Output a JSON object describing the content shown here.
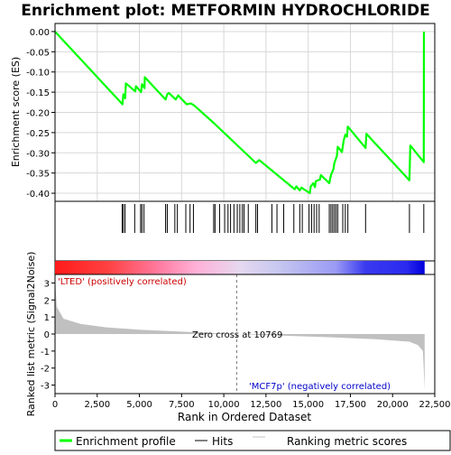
{
  "chart_data": {
    "type": "line",
    "title": "Enrichment plot: METFORMIN HYDROCHLORIDE",
    "es_panel": {
      "ylabel": "Enrichment score (ES)",
      "ylim": [
        -0.42,
        0.02
      ],
      "yticks": [
        0.0,
        -0.05,
        -0.1,
        -0.15,
        -0.2,
        -0.25,
        -0.3,
        -0.35,
        -0.4
      ],
      "ytick_labels": [
        "0.00",
        "-0.05",
        "-0.10",
        "-0.15",
        "-0.20",
        "-0.25",
        "-0.30",
        "-0.35",
        "-0.40"
      ],
      "grid": true,
      "line_color": "#00ff00",
      "points": [
        [
          0,
          0.0
        ],
        [
          4000,
          -0.18
        ],
        [
          4050,
          -0.155
        ],
        [
          4150,
          -0.165
        ],
        [
          4200,
          -0.128
        ],
        [
          4750,
          -0.148
        ],
        [
          4800,
          -0.135
        ],
        [
          5100,
          -0.15
        ],
        [
          5150,
          -0.13
        ],
        [
          5300,
          -0.14
        ],
        [
          5320,
          -0.113
        ],
        [
          6550,
          -0.168
        ],
        [
          6650,
          -0.155
        ],
        [
          6750,
          -0.152
        ],
        [
          7150,
          -0.168
        ],
        [
          7300,
          -0.158
        ],
        [
          7800,
          -0.18
        ],
        [
          8050,
          -0.178
        ],
        [
          8250,
          -0.183
        ],
        [
          9450,
          -0.228
        ],
        [
          11900,
          -0.325
        ],
        [
          12100,
          -0.318
        ],
        [
          14200,
          -0.39
        ],
        [
          14300,
          -0.383
        ],
        [
          14500,
          -0.393
        ],
        [
          14600,
          -0.386
        ],
        [
          15100,
          -0.4
        ],
        [
          15150,
          -0.383
        ],
        [
          15300,
          -0.375
        ],
        [
          15400,
          -0.385
        ],
        [
          15450,
          -0.37
        ],
        [
          15700,
          -0.366
        ],
        [
          15750,
          -0.355
        ],
        [
          16250,
          -0.375
        ],
        [
          16350,
          -0.355
        ],
        [
          16500,
          -0.34
        ],
        [
          16550,
          -0.325
        ],
        [
          16700,
          -0.308
        ],
        [
          16750,
          -0.285
        ],
        [
          17000,
          -0.298
        ],
        [
          17100,
          -0.27
        ],
        [
          17200,
          -0.255
        ],
        [
          17300,
          -0.26
        ],
        [
          17350,
          -0.235
        ],
        [
          18400,
          -0.288
        ],
        [
          18450,
          -0.253
        ],
        [
          21000,
          -0.368
        ],
        [
          21050,
          -0.282
        ],
        [
          21850,
          -0.323
        ],
        [
          21860,
          0.0
        ]
      ]
    },
    "hits": {
      "positions": [
        3980,
        4050,
        4150,
        4720,
        5070,
        5150,
        5270,
        6550,
        6650,
        7100,
        7250,
        7750,
        8000,
        8200,
        9400,
        9480,
        9750,
        10050,
        10250,
        10400,
        10600,
        10800,
        10950,
        11100,
        11200,
        11450,
        11900,
        12000,
        12850,
        13150,
        13550,
        14150,
        14500,
        14650,
        15050,
        15200,
        15350,
        15500,
        15650,
        16250,
        16350,
        16450,
        16550,
        16650,
        16750,
        17050,
        17200,
        17350,
        18400,
        21000,
        21850
      ],
      "line_color": "#000000"
    },
    "gradient_bar": {
      "stops": [
        {
          "offset": 0.0,
          "color": "#ff1a1a"
        },
        {
          "offset": 0.14,
          "color": "#ff4040"
        },
        {
          "offset": 0.28,
          "color": "#ff7aa0"
        },
        {
          "offset": 0.38,
          "color": "#ffb0d6"
        },
        {
          "offset": 0.5,
          "color": "#e6d8f0"
        },
        {
          "offset": 0.6,
          "color": "#c8c8f0"
        },
        {
          "offset": 0.76,
          "color": "#9a9af5"
        },
        {
          "offset": 0.84,
          "color": "#3a3af0"
        },
        {
          "offset": 0.95,
          "color": "#2a2af0"
        },
        {
          "offset": 1.0,
          "color": "#0000dd"
        }
      ]
    },
    "metric_panel": {
      "ylabel": "Ranked list metric (Signal2Noise)",
      "ylim": [
        -3.5,
        3.5
      ],
      "yticks": [
        3,
        2,
        1,
        0,
        -1,
        -2,
        -3
      ],
      "ytick_labels": [
        "3",
        "2",
        "1",
        "0",
        "-1",
        "-2",
        "-3"
      ],
      "fill_color": "#c0c0c0",
      "profile": [
        [
          0,
          3.3
        ],
        [
          100,
          1.6
        ],
        [
          500,
          0.9
        ],
        [
          1500,
          0.6
        ],
        [
          3000,
          0.4
        ],
        [
          5000,
          0.25
        ],
        [
          8000,
          0.12
        ],
        [
          10769,
          0.0
        ],
        [
          13000,
          -0.08
        ],
        [
          16000,
          -0.18
        ],
        [
          19000,
          -0.3
        ],
        [
          21000,
          -0.45
        ],
        [
          21500,
          -0.65
        ],
        [
          21800,
          -1.0
        ],
        [
          21900,
          -3.3
        ]
      ],
      "zero_cross_label": "Zero cross at 10769",
      "zero_cross": 10769,
      "pos_label": "'LTED' (positively correlated)",
      "neg_label": "'MCF7p' (negatively correlated)"
    },
    "x_axis": {
      "xlabel": "Rank in Ordered Dataset",
      "xlim": [
        0,
        22500
      ],
      "xticks": [
        0,
        2500,
        5000,
        7500,
        10000,
        12500,
        15000,
        17500,
        20000,
        22500
      ],
      "xtick_labels": [
        "0",
        "2,500",
        "5,000",
        "7,500",
        "10,000",
        "12,500",
        "15,000",
        "17,500",
        "20,000",
        "22,500"
      ]
    },
    "legend": {
      "placement": "bottom",
      "entries": [
        {
          "label": "Enrichment profile",
          "color": "#00ff00"
        },
        {
          "label": "Hits",
          "color": "#000000"
        },
        {
          "label": "Ranking metric scores",
          "color": "#c0c0c0"
        }
      ]
    }
  }
}
